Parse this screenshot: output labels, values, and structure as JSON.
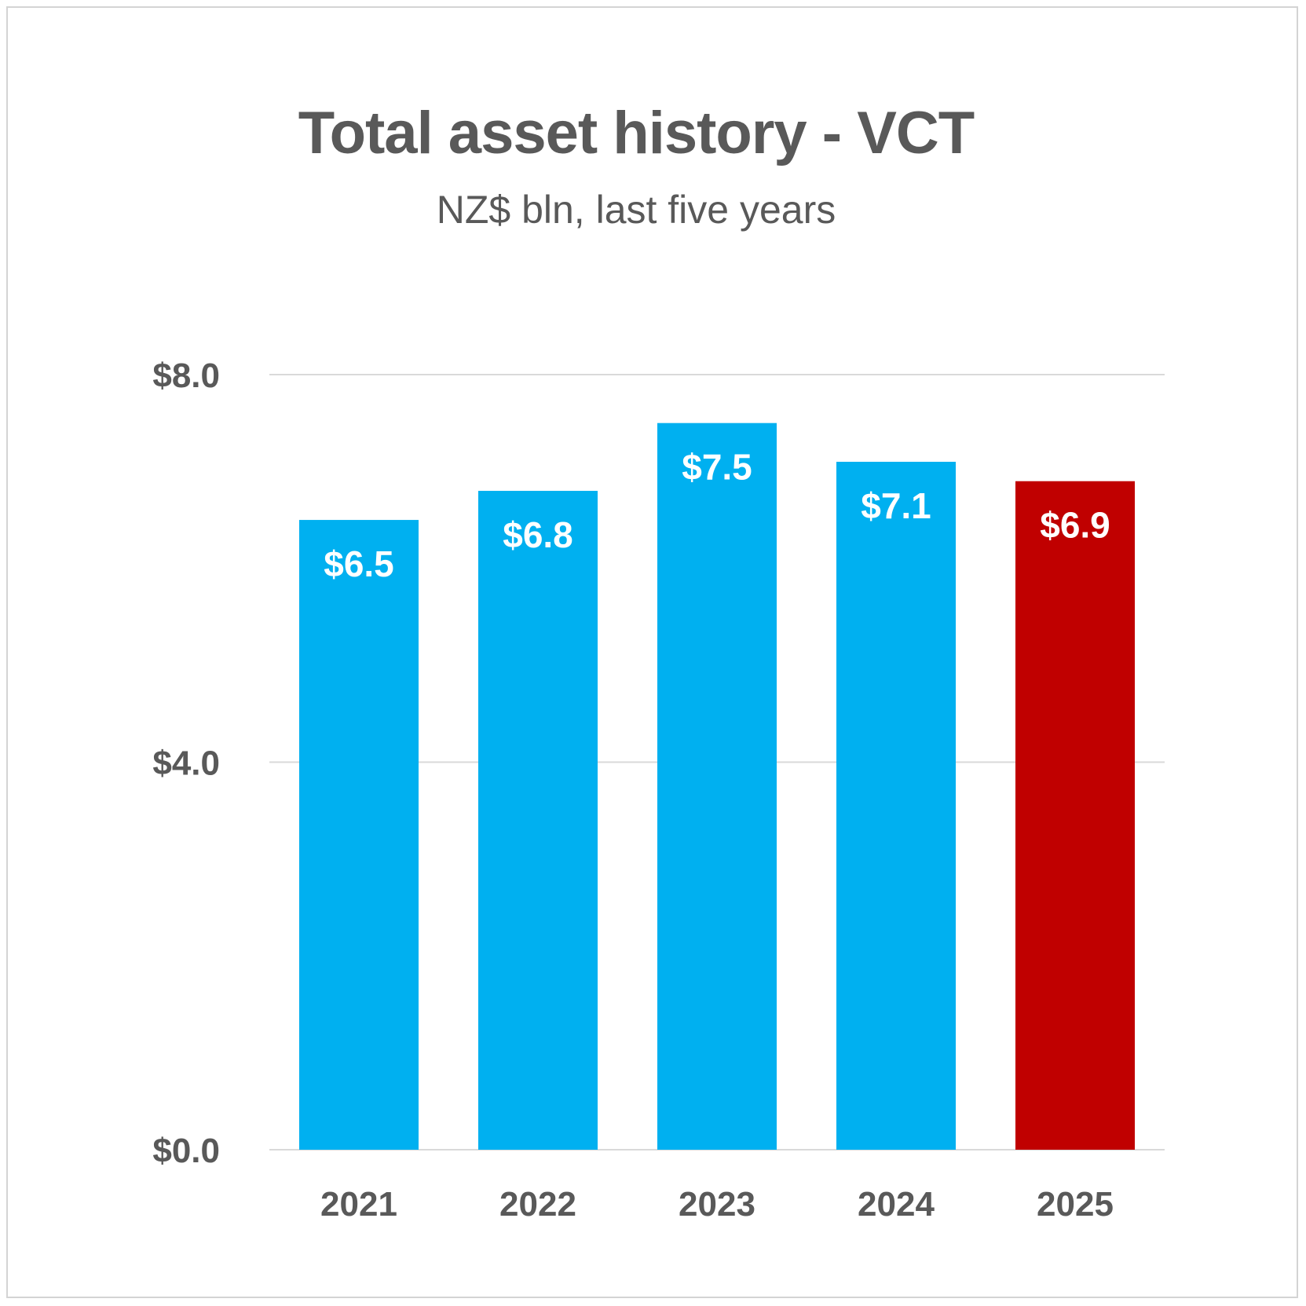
{
  "chart_data": {
    "type": "bar",
    "title": "Total asset history - VCT",
    "subtitle": "NZ$ bln, last five years",
    "xlabel": "",
    "ylabel": "",
    "categories": [
      "2021",
      "2022",
      "2023",
      "2024",
      "2025"
    ],
    "values": [
      6.5,
      6.8,
      7.5,
      7.1,
      6.9
    ],
    "data_labels": [
      "$6.5",
      "$6.8",
      "$7.5",
      "$7.1",
      "$6.9"
    ],
    "ylim": [
      0,
      8
    ],
    "yticks": [
      {
        "value": 0,
        "label": "$0.0"
      },
      {
        "value": 4,
        "label": "$4.0"
      },
      {
        "value": 8,
        "label": "$8.0"
      }
    ],
    "grid": true,
    "legend": "none",
    "colors": {
      "default_bar": "#00b0f0",
      "highlight_bar": "#c00000",
      "highlight_category": "2025",
      "gridline": "#d9d9d9",
      "text": "#595959",
      "data_label": "#ffffff"
    }
  }
}
